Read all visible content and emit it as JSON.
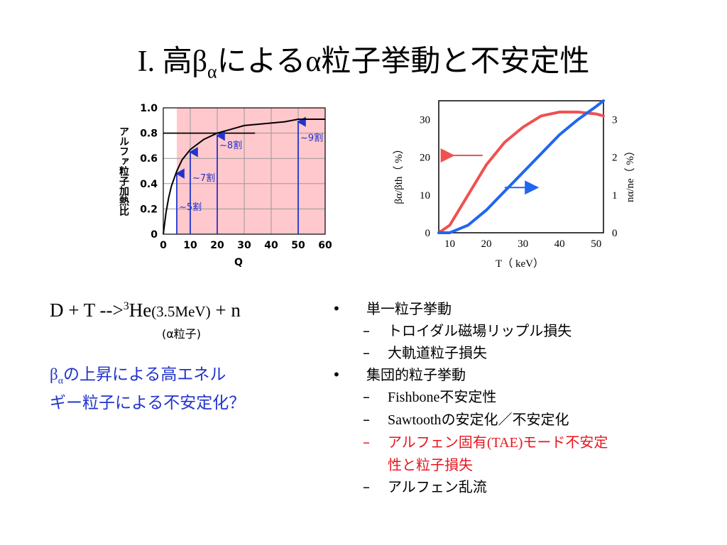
{
  "title": {
    "prefix": "I. 高",
    "beta": "β",
    "sub": "α",
    "suffix_kana": "による",
    "alpha": "α",
    "suffix": "粒子挙動と不安定性"
  },
  "chart_data": [
    {
      "type": "line",
      "ylabel": "アルファ粒子加熱比",
      "xlabel": "Q",
      "xlim": [
        0,
        60
      ],
      "ylim": [
        0,
        1.0
      ],
      "x_ticks": [
        "0",
        "10",
        "20",
        "30",
        "40",
        "50",
        "60"
      ],
      "y_ticks": [
        "0",
        "0.2",
        "0.4",
        "0.6",
        "0.8",
        "1.0"
      ],
      "shaded_region": {
        "x_from": 5,
        "x_to": 60
      },
      "reference_line": {
        "y": 0.8,
        "x_from": 0,
        "x_to": 34
      },
      "series": [
        {
          "x": [
            0,
            1,
            2,
            3,
            4,
            5,
            7,
            10,
            15,
            20,
            25,
            30,
            35,
            40,
            45,
            50,
            55,
            60
          ],
          "y": [
            0.0,
            0.17,
            0.29,
            0.38,
            0.44,
            0.5,
            0.59,
            0.67,
            0.75,
            0.8,
            0.83,
            0.86,
            0.87,
            0.88,
            0.89,
            0.91,
            0.91,
            0.91
          ]
        }
      ],
      "annotations": [
        {
          "x": 5,
          "label": "~5割"
        },
        {
          "x": 10,
          "label": "~7割"
        },
        {
          "x": 20,
          "label": "~8割"
        },
        {
          "x": 50,
          "label": "~9割"
        }
      ]
    },
    {
      "type": "line",
      "xlabel": "T（ keV）",
      "ylabel_left": "βα/βth（ %）",
      "ylabel_right": "nα/ne（ %）",
      "xlim": [
        7,
        52
      ],
      "ylim_left": [
        0,
        35
      ],
      "ylim_right": [
        0,
        3.5
      ],
      "x_ticks": [
        "10",
        "20",
        "30",
        "40",
        "50"
      ],
      "y_ticks_left": [
        "0",
        "10",
        "20",
        "30"
      ],
      "y_ticks_right": [
        "0",
        "1",
        "2",
        "3"
      ],
      "series": [
        {
          "color": "#f05050",
          "axis": "left",
          "x": [
            7,
            10,
            15,
            20,
            25,
            30,
            35,
            40,
            45,
            50,
            52
          ],
          "y": [
            0,
            2,
            10,
            18,
            24,
            28,
            31,
            32,
            32,
            31.5,
            31
          ]
        },
        {
          "color": "#2266ee",
          "axis": "right",
          "x": [
            7,
            10,
            15,
            20,
            25,
            30,
            35,
            40,
            45,
            50,
            52
          ],
          "y": [
            0,
            0,
            0.2,
            0.6,
            1.1,
            1.6,
            2.1,
            2.6,
            3.0,
            3.35,
            3.5
          ]
        }
      ]
    }
  ],
  "equation": {
    "main": "D + T -->",
    "sup": "3",
    "he": "He",
    "energy": "(3.5MeV)",
    "tail": " + n",
    "note": "(α粒子)"
  },
  "question": {
    "beta": "β",
    "sub": "α",
    "line1_rest": "の上昇による高エネル",
    "line2": "ギー粒子による不安定化？"
  },
  "bullets": {
    "single": {
      "label": "単一粒子挙動",
      "items": [
        "トロイダル磁場リップル損失",
        "大軌道粒子損失"
      ]
    },
    "collective": {
      "label": "集団的粒子挙動",
      "fishbone": {
        "latin": "Fishbone",
        "rest": "不安定性"
      },
      "sawtooth": {
        "latin": "Sawtooth",
        "rest": "の安定化／不安定化"
      },
      "alfven": {
        "pre": "アルフェン固有",
        "latin": "(TAE)",
        "rest": "モード不安定",
        "line2": "性と粒子損失"
      },
      "turbulence": "アルフェン乱流"
    }
  },
  "colors": {
    "pink": "#ffc8cc",
    "annotation_blue": "#2233cc",
    "question_blue": "#2233cc",
    "red_curve": "#f05050",
    "blue_curve": "#2266ee",
    "red_text": "#e8141e"
  }
}
